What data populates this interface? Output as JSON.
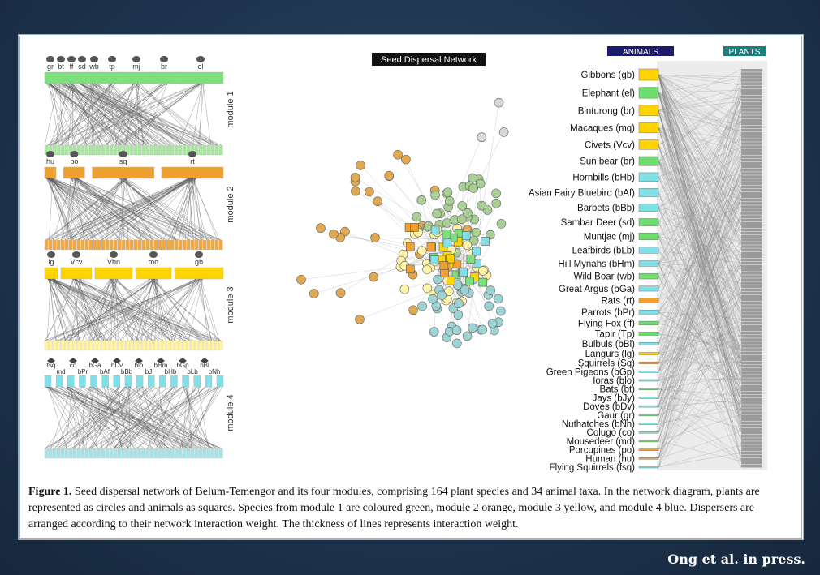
{
  "network_title": "Seed Dispersal Network",
  "header_animals": "ANIMALS",
  "header_plants": "PLANTS",
  "modules": [
    {
      "label": "module 1",
      "color": "#7be07b",
      "plant_color": "#a8e6a0",
      "abbrevs": [
        "gr",
        "bt",
        "ff",
        "sd",
        "wb",
        "tp",
        "mj",
        "br",
        "el"
      ]
    },
    {
      "label": "module 2",
      "color": "#f0a030",
      "plant_color": "#f0a844",
      "abbrevs": [
        "hu",
        "po",
        "sq",
        "rt"
      ]
    },
    {
      "label": "module 3",
      "color": "#ffd400",
      "plant_color": "#fff3a0",
      "abbrevs": [
        "lg",
        "Vcv",
        "Vbn",
        "mq",
        "gb"
      ]
    },
    {
      "label": "module 4",
      "color": "#7fe0e8",
      "plant_color": "#a8e2e6",
      "abbrevs_top": [
        "fsq",
        "co",
        "bGa",
        "bDv",
        "blo",
        "bHm",
        "bGp",
        "bBl"
      ],
      "abbrevs_bottom": [
        "md",
        "bPr",
        "bAf",
        "bBb",
        "bJ",
        "bHb",
        "bLb",
        "bNh"
      ]
    }
  ],
  "animals": [
    {
      "label": "Gibbons (gb)",
      "color": "#ffd400"
    },
    {
      "label": "Elephant (el)",
      "color": "#6fdc6f"
    },
    {
      "label": "Binturong (br)",
      "color": "#ffd400"
    },
    {
      "label": "Macaques (mq)",
      "color": "#ffd400"
    },
    {
      "label": "Civets (Vcv)",
      "color": "#ffd400"
    },
    {
      "label": "Sun bear (br)",
      "color": "#6fdc6f"
    },
    {
      "label": "Hornbills (bHb)",
      "color": "#7fe0e8"
    },
    {
      "label": "Asian Fairy Bluebird (bAf)",
      "color": "#7fe0e8"
    },
    {
      "label": "Barbets (bBb)",
      "color": "#7fe0e8"
    },
    {
      "label": "Sambar Deer (sd)",
      "color": "#6fdc6f"
    },
    {
      "label": "Muntjac (mj)",
      "color": "#6fdc6f"
    },
    {
      "label": "Leafbirds (bLb)",
      "color": "#7fe0e8"
    },
    {
      "label": "Hill Mynahs (bHm)",
      "color": "#7fe0e8"
    },
    {
      "label": "Wild Boar (wb)",
      "color": "#6fdc6f"
    },
    {
      "label": "Great Argus (bGa)",
      "color": "#7fe0e8"
    },
    {
      "label": "Rats (rt)",
      "color": "#f0a030"
    },
    {
      "label": "Parrots (bPr)",
      "color": "#7fe0e8"
    },
    {
      "label": "Flying Fox (ff)",
      "color": "#6fdc6f"
    },
    {
      "label": "Tapir (Tp)",
      "color": "#6fdc6f"
    },
    {
      "label": "Bulbuls (bBl)",
      "color": "#7fe0e8"
    },
    {
      "label": "Langurs (lg)",
      "color": "#ffd400"
    },
    {
      "label": "Squirrels (Sq)",
      "color": "#f0a030"
    },
    {
      "label": "Green Pigeons (bGp)",
      "color": "#7fe0e8"
    },
    {
      "label": "Ioras (blo)",
      "color": "#7fe0e8"
    },
    {
      "label": "Bats (bt)",
      "color": "#6fdc6f"
    },
    {
      "label": "Jays (bJy)",
      "color": "#7fe0e8"
    },
    {
      "label": "Doves (bDv)",
      "color": "#7fe0e8"
    },
    {
      "label": "Gaur (gr)",
      "color": "#6fdc6f"
    },
    {
      "label": "Nuthatches (bNh)",
      "color": "#7fe0e8"
    },
    {
      "label": "Colugo (co)",
      "color": "#7fe0e8"
    },
    {
      "label": "Mousedeer (md)",
      "color": "#6fdc6f"
    },
    {
      "label": "Porcupines (po)",
      "color": "#f0a030"
    },
    {
      "label": "Human (hu)",
      "color": "#f0a030"
    },
    {
      "label": "Flying Squirrels (fsq)",
      "color": "#7fe0e8"
    }
  ],
  "caption": {
    "figure_label": "Figure 1.",
    "text": " Seed dispersal network of Belum-Temengor and its four modules, comprising 164 plant species and 34 animal taxa. In the network diagram, plants are represented as circles and animals as squares. Species from module 1 are coloured green, module 2 orange, module 3 yellow, and module 4 blue. Dispersers are arranged according to their network interaction weight. The thickness of lines represents interaction weight."
  },
  "credit": "Ong et al. in press."
}
